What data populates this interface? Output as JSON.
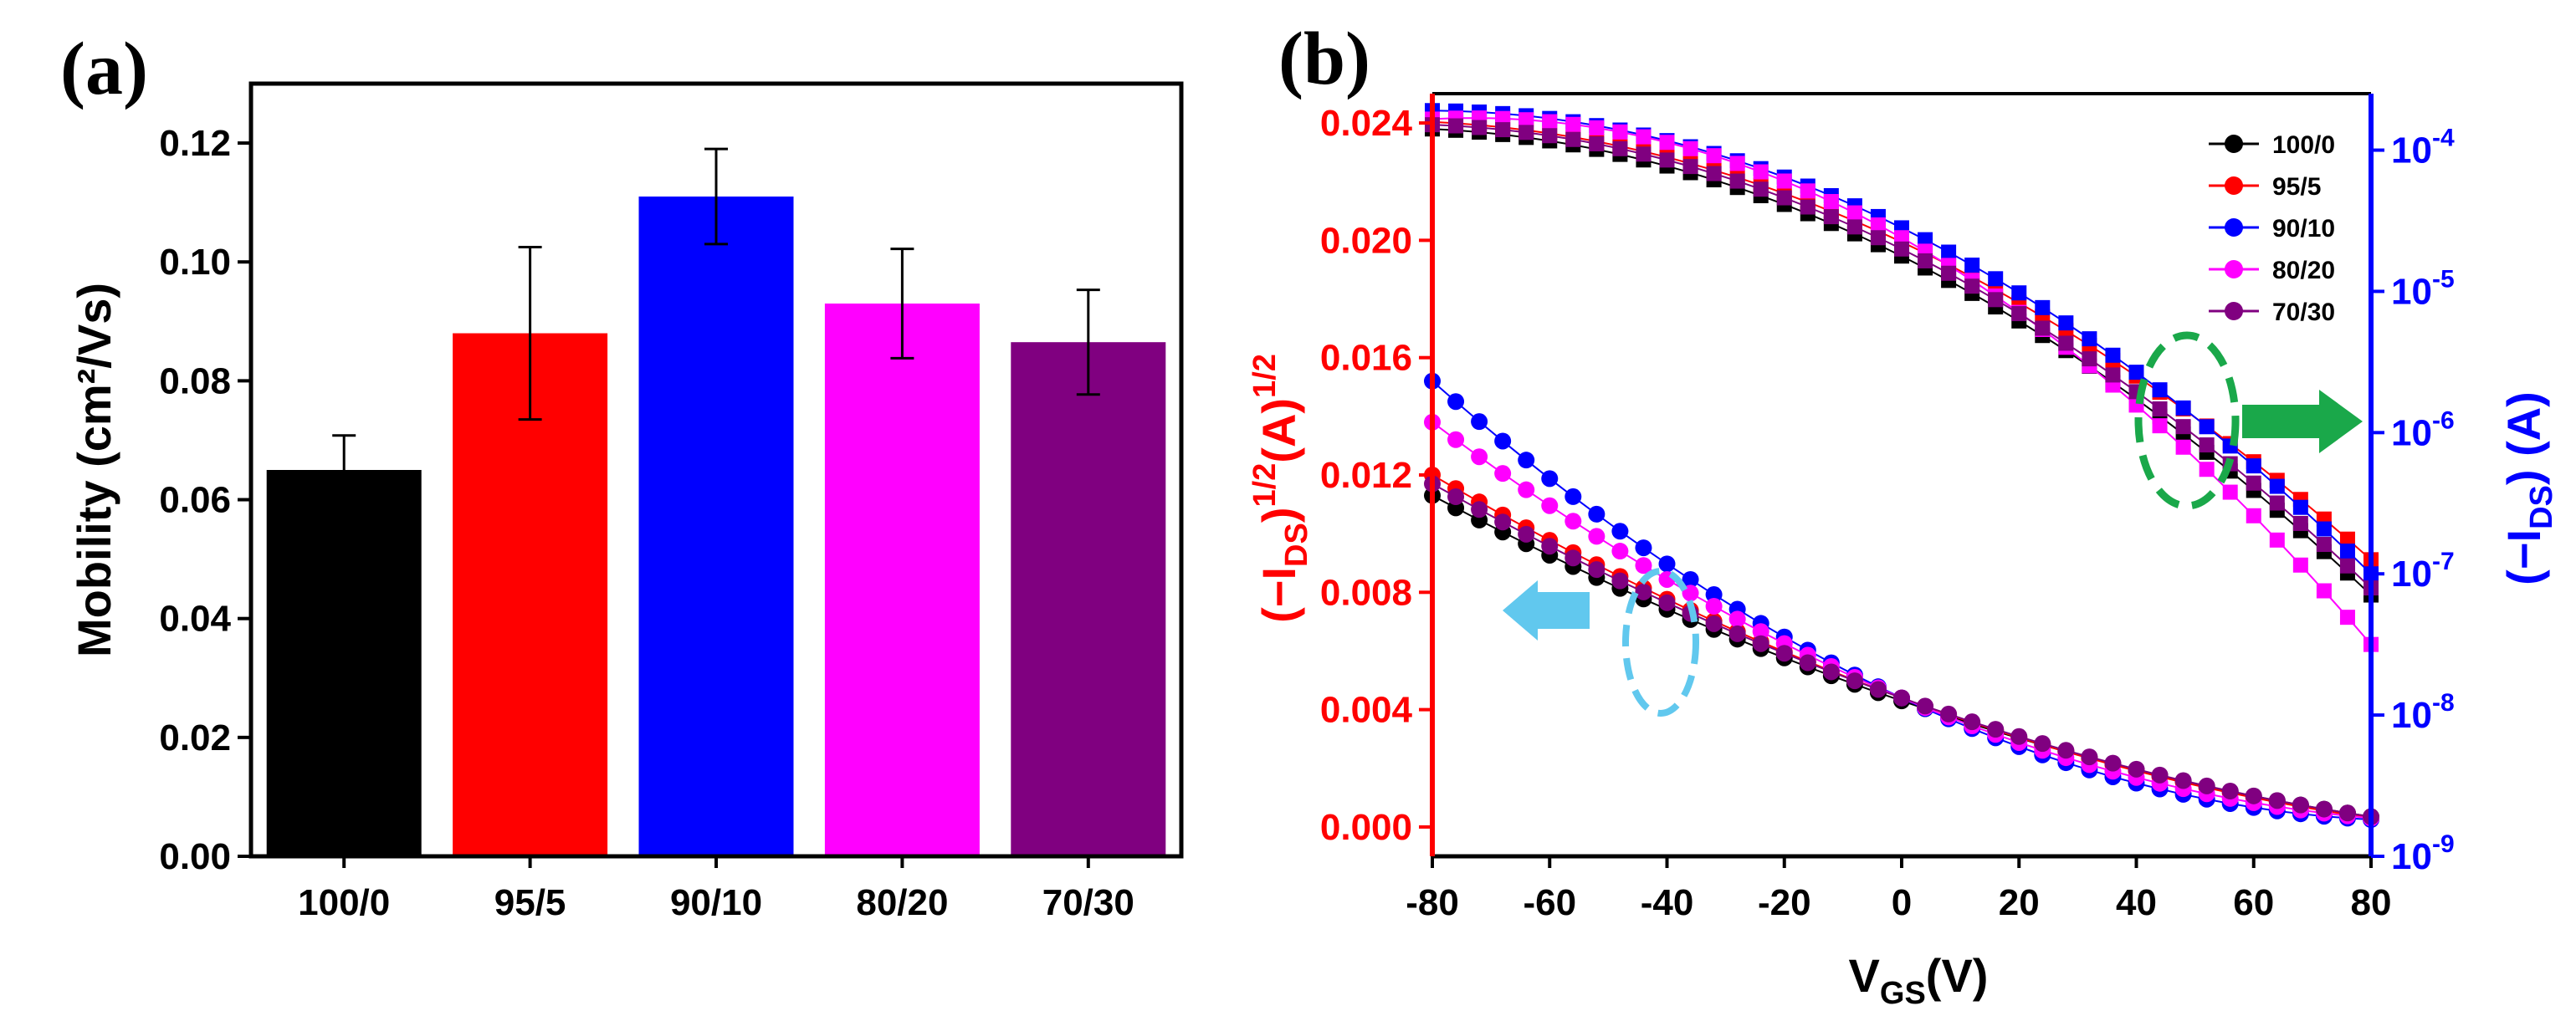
{
  "figure": {
    "panel_a_label": "(a)",
    "panel_b_label": "(b)"
  },
  "chart_data": [
    {
      "type": "bar",
      "panel": "(a)",
      "categories": [
        "100/0",
        "95/5",
        "90/10",
        "80/20",
        "70/30"
      ],
      "values": [
        0.065,
        0.088,
        0.111,
        0.093,
        0.0865
      ],
      "errors": [
        0.0058,
        0.0145,
        0.008,
        0.0092,
        0.0088
      ],
      "colors": [
        "#000000",
        "#ff0000",
        "#0000ff",
        "#ff00ff",
        "#800080"
      ],
      "ylabel": "Mobility (cm²/Vs)",
      "ylim": [
        0,
        0.13
      ],
      "yticks": [
        "0.00",
        "0.02",
        "0.04",
        "0.06",
        "0.08",
        "0.10",
        "0.12"
      ],
      "grid": false
    },
    {
      "type": "scatter",
      "panel": "(b)",
      "xlabel": "VGS(V)",
      "ylabel_left": "(−IDS)1/2(A)1/2",
      "ylabel_right": "(−IDS) (A)",
      "xlim": [
        -80,
        80
      ],
      "xticks": [
        "-80",
        "-60",
        "-40",
        "-20",
        "0",
        "20",
        "40",
        "60",
        "80"
      ],
      "ylim_left": [
        -0.001,
        0.025
      ],
      "yticks_left": [
        "0.000",
        "0.004",
        "0.008",
        "0.012",
        "0.016",
        "0.020",
        "0.024"
      ],
      "ylim_right_log10": [
        -9,
        -3.6
      ],
      "yticks_right": [
        "10-9",
        "10-8",
        "10-7",
        "10-6",
        "10-5",
        "10-4"
      ],
      "left_axis_color": "#ff0000",
      "right_axis_color": "#0000ff",
      "legend_position": "top-right",
      "legend": [
        "100/0",
        "95/5",
        "90/10",
        "80/20",
        "70/30"
      ],
      "series": [
        {
          "name": "100/0",
          "color": "#000000",
          "sqrt_start": 0.0113,
          "sqrt_mid": 0.0043,
          "sqrt_end": 0.00035,
          "log_start": -3.85,
          "log_mid": -4.75,
          "log_end": -7.15
        },
        {
          "name": "95/5",
          "color": "#ff0000",
          "sqrt_start": 0.012,
          "sqrt_mid": 0.0044,
          "sqrt_end": 0.0003,
          "log_start": -3.8,
          "log_mid": -4.65,
          "log_end": -6.9
        },
        {
          "name": "90/10",
          "color": "#0000ff",
          "sqrt_start": 0.0152,
          "sqrt_mid": 0.0044,
          "sqrt_end": 0.00025,
          "log_start": -3.72,
          "log_mid": -4.55,
          "log_end": -7.0
        },
        {
          "name": "80/20",
          "color": "#ff00ff",
          "sqrt_start": 0.0138,
          "sqrt_mid": 0.0044,
          "sqrt_end": 0.0003,
          "log_start": -3.78,
          "log_mid": -4.62,
          "log_end": -7.5
        },
        {
          "name": "70/30",
          "color": "#800080",
          "sqrt_start": 0.0117,
          "sqrt_mid": 0.0044,
          "sqrt_end": 0.00035,
          "log_start": -3.82,
          "log_mid": -4.7,
          "log_end": -7.1
        }
      ],
      "annotations": [
        {
          "shape": "ellipse-dashed",
          "color": "#61c8ee",
          "arrow": "left"
        },
        {
          "shape": "ellipse-dashed",
          "color": "#1aa84a",
          "arrow": "right"
        }
      ]
    }
  ]
}
